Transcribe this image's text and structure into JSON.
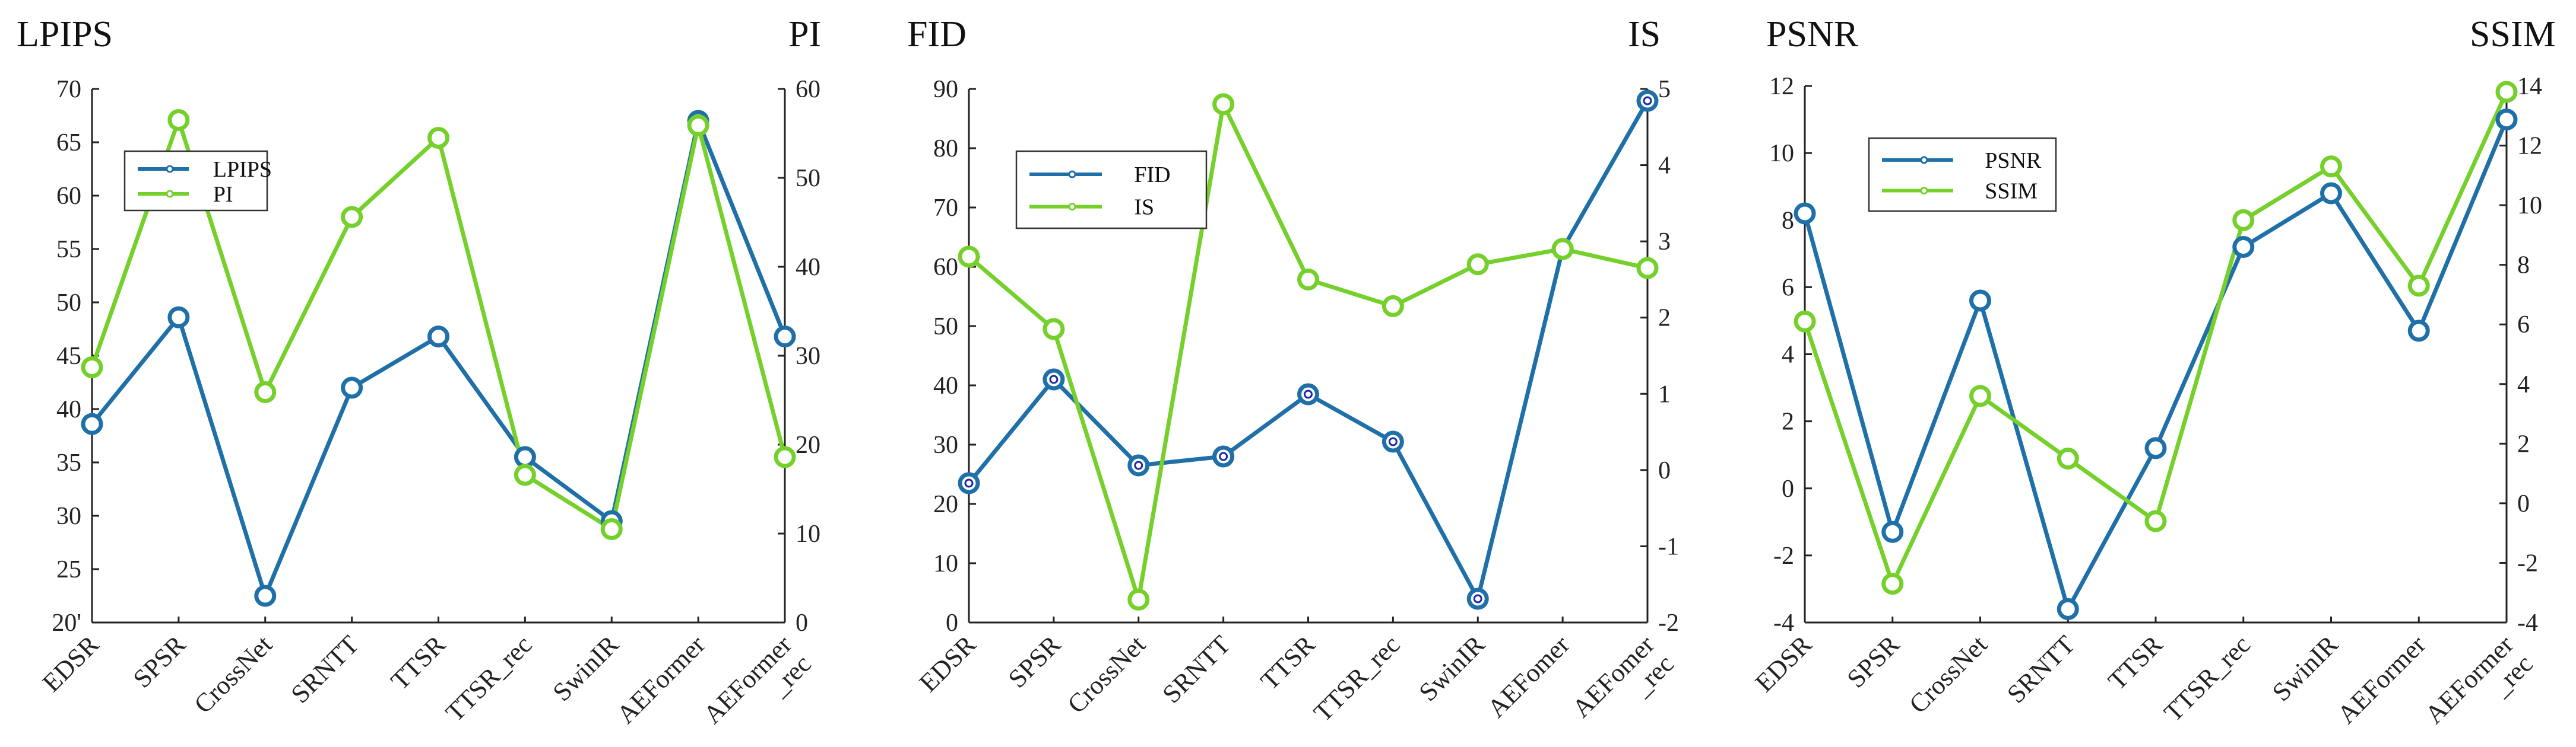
{
  "colors": {
    "series_left": "#1f6fa8",
    "series_right": "#76d02c",
    "inner_dark": "#1a2aa6",
    "axis": "#222222"
  },
  "chart_data": [
    {
      "type": "line",
      "id": "lpips-pi",
      "title_left": "LPIPS",
      "title_right": "PI",
      "categories": [
        "EDSR",
        "SPSR",
        "CrossNet",
        "SRNTT",
        "TTSR",
        "TTSR_rec",
        "SwinIR",
        "AEFormer",
        "AEFormer\n_rec"
      ],
      "left_axis": {
        "min": 20,
        "max": 70,
        "ticks": [
          20,
          25,
          30,
          35,
          40,
          45,
          50,
          55,
          60,
          65,
          70
        ],
        "tick_labels": [
          "20'",
          "25",
          "30",
          "35",
          "40",
          "45",
          "50",
          "55",
          "60",
          "65",
          "70"
        ]
      },
      "right_axis": {
        "min": 0,
        "max": 60,
        "ticks": [
          0,
          10,
          20,
          30,
          40,
          50,
          60
        ],
        "tick_labels": [
          "0",
          "10",
          "20",
          "30",
          "40",
          "50",
          "60"
        ]
      },
      "series": [
        {
          "name": "LPIPS",
          "axis": "left",
          "color_key": "series_left",
          "values": [
            38.6,
            48.6,
            22.5,
            42.0,
            46.8,
            35.5,
            29.5,
            67.0,
            46.8
          ]
        },
        {
          "name": "PI",
          "axis": "right",
          "color_key": "series_right",
          "values": [
            28.7,
            56.5,
            25.9,
            45.6,
            54.5,
            16.6,
            10.5,
            55.9,
            18.6
          ]
        }
      ],
      "legend": {
        "position": "upper-left",
        "entries": [
          "LPIPS",
          "PI"
        ]
      }
    },
    {
      "type": "line",
      "id": "fid-is",
      "title_left": "FID",
      "title_right": "IS",
      "categories": [
        "EDSR",
        "SPSR",
        "CrossNet",
        "SRNTT",
        "TTSR",
        "TTSR_rec",
        "SwinIR",
        "AEFomer",
        "AEFomer\n_rec"
      ],
      "left_axis": {
        "min": 0,
        "max": 90,
        "ticks": [
          0,
          10,
          20,
          30,
          40,
          50,
          60,
          70,
          80,
          90
        ],
        "tick_labels": [
          "0",
          "10",
          "20",
          "30",
          "40",
          "50",
          "60",
          "70",
          "80",
          "90"
        ]
      },
      "right_axis": {
        "min": -2,
        "max": 5,
        "ticks": [
          -2,
          -1,
          0,
          1,
          2,
          3,
          4,
          5
        ],
        "tick_labels": [
          "-2",
          "-1",
          "0",
          "1",
          "2",
          "3",
          "4",
          "5"
        ]
      },
      "series": [
        {
          "name": "FID",
          "axis": "left",
          "color_key": "series_left",
          "values": [
            23.5,
            41.0,
            26.5,
            28.0,
            38.5,
            30.5,
            4.0,
            63.0,
            88.0
          ]
        },
        {
          "name": "IS",
          "axis": "right",
          "color_key": "series_right",
          "values": [
            2.8,
            1.85,
            -1.7,
            4.8,
            2.5,
            2.15,
            2.7,
            2.9,
            2.65
          ]
        }
      ],
      "legend": {
        "position": "upper-left",
        "entries": [
          "FID",
          "IS"
        ]
      }
    },
    {
      "type": "line",
      "id": "psnr-ssim",
      "title_left": "PSNR",
      "title_right": "SSIM",
      "categories": [
        "EDSR",
        "SPSR",
        "CrossNet",
        "SRNTT",
        "TTSR",
        "TTSR_rec",
        "SwinIR",
        "AEFormer",
        "AEFormer\n_rec"
      ],
      "left_axis": {
        "min": -4,
        "max": 12,
        "ticks": [
          -4,
          -2,
          0,
          2,
          4,
          6,
          8,
          10,
          12
        ],
        "tick_labels": [
          "-4",
          "-2",
          "0",
          "2",
          "4",
          "6",
          "8",
          "10",
          "12"
        ]
      },
      "right_axis": {
        "min": -4,
        "max": 14,
        "ticks": [
          -4,
          -2,
          0,
          2,
          4,
          6,
          8,
          10,
          12,
          14
        ],
        "tick_labels": [
          "-4",
          "-2",
          "0",
          "2",
          "4",
          "6",
          "8",
          "10",
          "12",
          "14"
        ]
      },
      "series": [
        {
          "name": "PSNR",
          "axis": "left",
          "color_key": "series_left",
          "values": [
            8.2,
            -1.3,
            5.6,
            -3.6,
            1.2,
            7.2,
            8.8,
            4.7,
            11.0
          ]
        },
        {
          "name": "SSIM",
          "axis": "right",
          "color_key": "series_right",
          "values": [
            6.1,
            -2.7,
            3.6,
            1.5,
            -0.6,
            9.5,
            11.3,
            7.3,
            13.8
          ]
        }
      ],
      "legend": {
        "position": "upper-left",
        "entries": [
          "PSNR",
          "SSIM"
        ]
      }
    }
  ]
}
